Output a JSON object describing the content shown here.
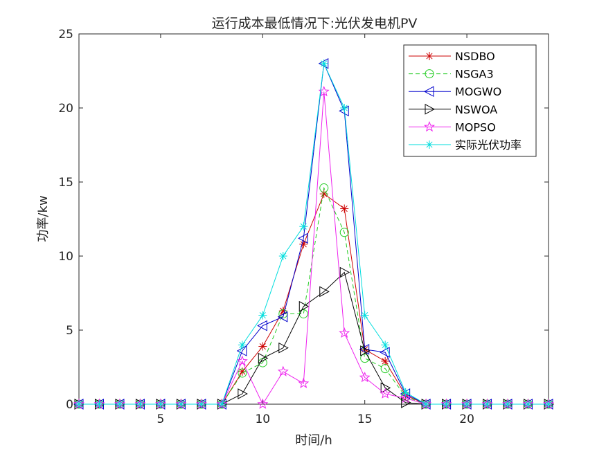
{
  "chart_data": {
    "type": "line",
    "title": "运行成本最低情况下:光伏发电机PV",
    "xlabel": "时间/h",
    "ylabel": "功率/kw",
    "xlim": [
      1,
      24
    ],
    "ylim": [
      0,
      25
    ],
    "xticks": [
      5,
      10,
      15,
      20
    ],
    "yticks": [
      0,
      5,
      10,
      15,
      20,
      25
    ],
    "grid": false,
    "legend_position": "top-right",
    "x": [
      1,
      2,
      3,
      4,
      5,
      6,
      7,
      8,
      9,
      10,
      11,
      12,
      13,
      14,
      15,
      16,
      17,
      18,
      19,
      20,
      21,
      22,
      23,
      24
    ],
    "series": [
      {
        "name": "NSDBO",
        "color": "#cc0000",
        "marker": "asterisk",
        "dash": "solid",
        "values": [
          0,
          0,
          0,
          0,
          0,
          0,
          0,
          0,
          2.2,
          3.9,
          6.3,
          10.8,
          14.2,
          13.2,
          3.7,
          2.9,
          0.6,
          0,
          0,
          0,
          0,
          0,
          0,
          0
        ]
      },
      {
        "name": "NSGA3",
        "color": "#22cc22",
        "marker": "circle",
        "dash": "dashed",
        "values": [
          0,
          0,
          0,
          0,
          0,
          0,
          0,
          0,
          2.1,
          2.8,
          6.1,
          6.1,
          14.6,
          11.6,
          3.1,
          2.4,
          0.5,
          0,
          0,
          0,
          0,
          0,
          0,
          0
        ]
      },
      {
        "name": "MOGWO",
        "color": "#0000cc",
        "marker": "triangle-left",
        "dash": "solid",
        "values": [
          0,
          0,
          0,
          0,
          0,
          0,
          0,
          0,
          3.6,
          5.3,
          5.9,
          11.2,
          23.0,
          19.8,
          3.7,
          3.5,
          0.7,
          0,
          0,
          0,
          0,
          0,
          0,
          0
        ]
      },
      {
        "name": "NSWOA",
        "color": "#000000",
        "marker": "triangle-right",
        "dash": "solid",
        "values": [
          0,
          0,
          0,
          0,
          0,
          0,
          0,
          0,
          0.7,
          3.1,
          3.8,
          6.6,
          7.6,
          8.9,
          3.6,
          1.1,
          0.1,
          0,
          0,
          0,
          0,
          0,
          0,
          0
        ]
      },
      {
        "name": "MOPSO",
        "color": "#ee22ee",
        "marker": "pentagram",
        "dash": "solid",
        "values": [
          0,
          0,
          0,
          0,
          0,
          0,
          0,
          0,
          2.9,
          0.0,
          2.2,
          1.4,
          21.1,
          4.8,
          1.8,
          0.7,
          0.4,
          0,
          0,
          0,
          0,
          0,
          0,
          0
        ]
      },
      {
        "name": "实际光伏功率",
        "color": "#00dddd",
        "marker": "asterisk",
        "dash": "solid",
        "values": [
          0,
          0,
          0,
          0,
          0,
          0,
          0,
          0,
          4.0,
          6.0,
          10.0,
          12.0,
          23.0,
          20.0,
          6.0,
          4.0,
          0.8,
          0,
          0,
          0,
          0,
          0,
          0,
          0
        ]
      }
    ]
  }
}
